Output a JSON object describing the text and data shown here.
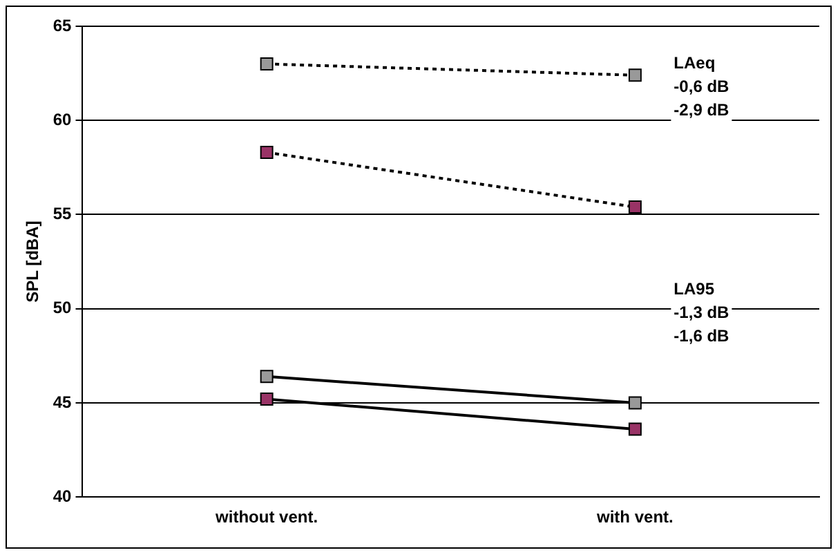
{
  "chart_data": {
    "type": "line",
    "ylabel": "SPL [dBA]",
    "categories": [
      "without vent.",
      "with vent."
    ],
    "series": [
      {
        "color": "#999999",
        "values": [
          63.0,
          62.4
        ],
        "line_style": "dotted"
      },
      {
        "color": "#993366",
        "values": [
          58.3,
          55.4
        ],
        "line_style": "dotted"
      },
      {
        "color": "#999999",
        "values": [
          46.4,
          45.0
        ],
        "line_style": "solid"
      },
      {
        "color": "#993366",
        "values": [
          45.2,
          43.6
        ],
        "line_style": "solid"
      }
    ],
    "ylim": [
      40,
      65
    ],
    "yticks": [
      40,
      45,
      50,
      55,
      60,
      65
    ],
    "grid": "y",
    "legend": false,
    "marker": "square",
    "annotations": [
      "LAeq",
      "-0,6 dB",
      "-2,9 dB",
      "LA95",
      "-1,3 dB",
      "-1,6 dB"
    ]
  }
}
